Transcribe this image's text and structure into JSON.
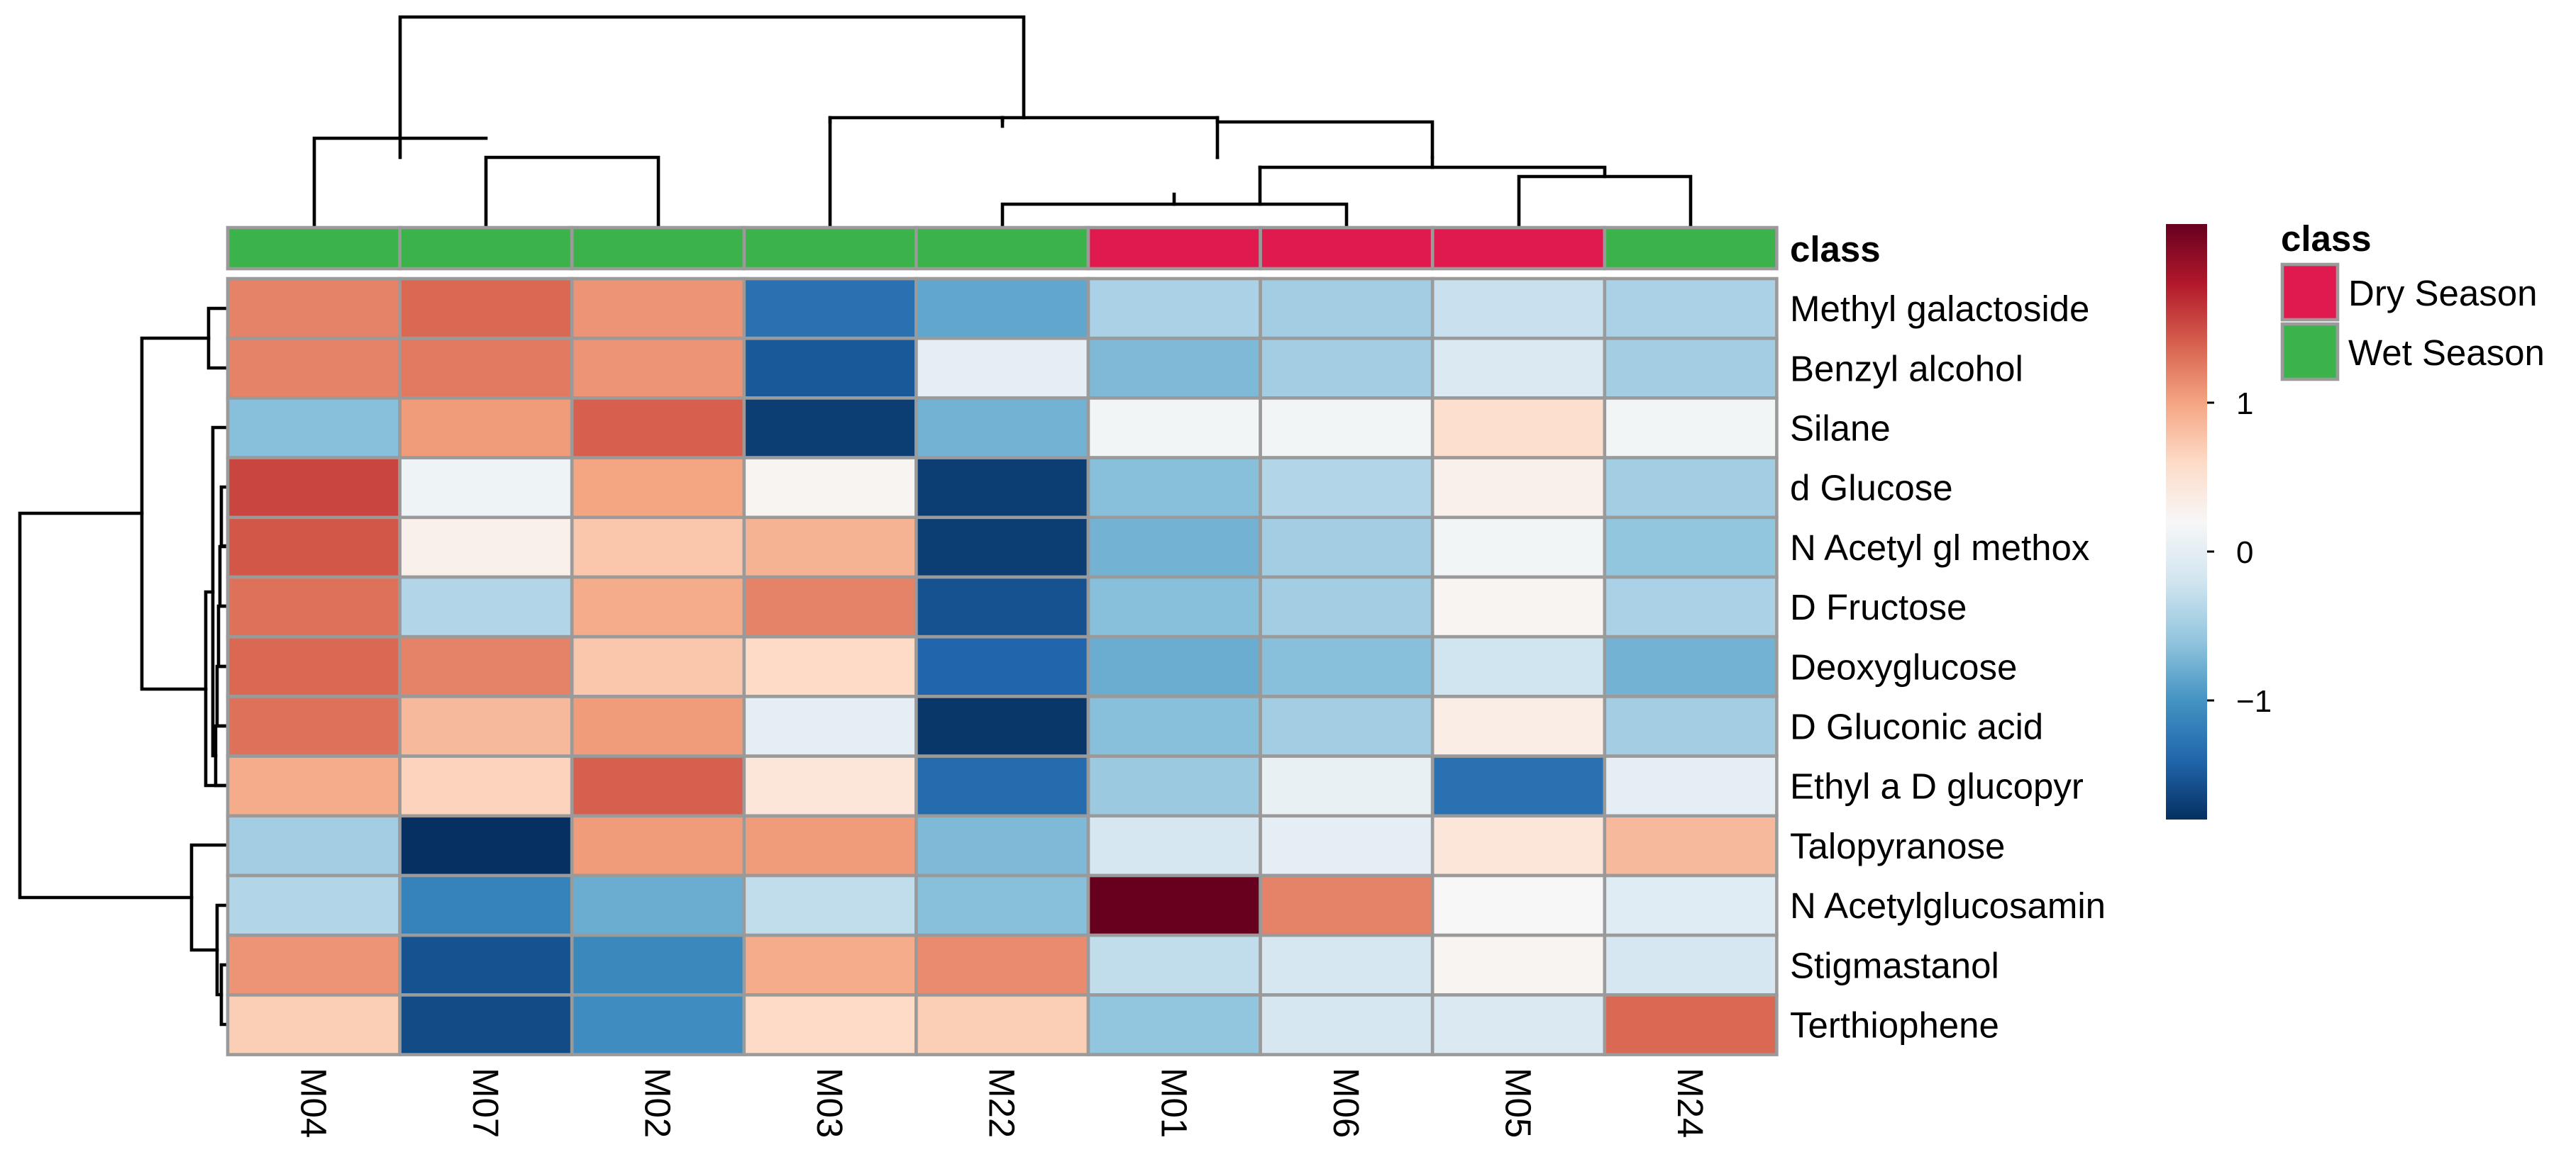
{
  "chart_data": {
    "type": "heatmap",
    "title": "",
    "columns": [
      "M04",
      "M07",
      "M02",
      "M03",
      "M22",
      "M01",
      "M06",
      "M05",
      "M24"
    ],
    "rows": [
      "Methyl galactoside",
      "Benzyl alcohol",
      "Silane",
      "d Glucose",
      "N Acetyl gl methox",
      "D Fructose",
      "Deoxyglucose",
      "D Gluconic acid",
      "Ethyl a D glucopyr",
      "Talopyranose",
      "N Acetylglucosamin",
      "Stigmastanol",
      "Terthiophene"
    ],
    "values": [
      [
        1.2,
        1.35,
        1.1,
        -1.3,
        -0.85,
        -0.45,
        -0.5,
        -0.25,
        -0.45
      ],
      [
        1.2,
        1.25,
        1.1,
        -1.5,
        0.0,
        -0.7,
        -0.5,
        -0.1,
        -0.5
      ],
      [
        -0.65,
        1.05,
        1.4,
        -1.7,
        -0.75,
        0.15,
        0.15,
        0.55,
        0.15
      ],
      [
        1.55,
        0.1,
        1.0,
        0.25,
        -1.7,
        -0.65,
        -0.4,
        0.3,
        -0.5
      ],
      [
        1.45,
        0.3,
        0.75,
        0.9,
        -1.7,
        -0.75,
        -0.5,
        0.15,
        -0.6
      ],
      [
        1.3,
        -0.4,
        0.95,
        1.2,
        -1.55,
        -0.65,
        -0.5,
        0.25,
        -0.45
      ],
      [
        1.35,
        1.2,
        0.75,
        0.6,
        -1.4,
        -0.8,
        -0.65,
        -0.2,
        -0.75
      ],
      [
        1.3,
        0.85,
        1.05,
        0.0,
        -1.75,
        -0.65,
        -0.5,
        0.35,
        -0.5
      ],
      [
        0.95,
        0.65,
        1.4,
        0.45,
        -1.35,
        -0.55,
        0.05,
        -1.3,
        0.0
      ],
      [
        -0.5,
        -1.8,
        1.05,
        1.05,
        -0.7,
        -0.15,
        0.0,
        0.45,
        0.85
      ],
      [
        -0.4,
        -1.15,
        -0.8,
        -0.3,
        -0.65,
        2.2,
        1.2,
        0.2,
        -0.05
      ],
      [
        1.1,
        -1.55,
        -1.1,
        0.95,
        1.15,
        -0.3,
        -0.15,
        0.25,
        -0.15
      ],
      [
        0.7,
        -1.6,
        -1.05,
        0.6,
        0.7,
        -0.6,
        -0.15,
        -0.1,
        1.35
      ]
    ],
    "annotation": {
      "label": "class",
      "values": [
        "Wet Season",
        "Wet Season",
        "Wet Season",
        "Wet Season",
        "Wet Season",
        "Dry Season",
        "Dry Season",
        "Dry Season",
        "Wet Season"
      ]
    },
    "colorbar": {
      "ticks": [
        1,
        0,
        -1
      ],
      "tick_labels": [
        "1",
        "0",
        "−1"
      ],
      "range": [
        -1.8,
        2.2
      ]
    },
    "legend": {
      "title": "class",
      "entries": [
        {
          "label": "Dry Season",
          "color": "#e0194f"
        },
        {
          "label": "Wet Season",
          "color": "#3cb34a"
        }
      ]
    },
    "col_dendrogram": "((M04,(M07,M02)),(M03,(M22,((M01,M06),(M05,M24)))))",
    "row_dendrogram": "((((Methyl galactoside,Benzyl alcohol),(Silane,(d Glucose,N Acetyl gl methox,D Fructose,Deoxyglucose,D Gluconic acid))),Ethyl a D glucopyr),(Talopyranose,(N Acetylglucosamin,(Stigmastanol,Terthiophene))))"
  },
  "colors": {
    "palette": [
      "#053061",
      "#2166ac",
      "#4393c3",
      "#92c5de",
      "#d1e5f0",
      "#f7f7f7",
      "#fddbc7",
      "#f4a582",
      "#d6604d",
      "#b2182b",
      "#67001f"
    ],
    "grid_stroke": "#9a9a9a"
  }
}
